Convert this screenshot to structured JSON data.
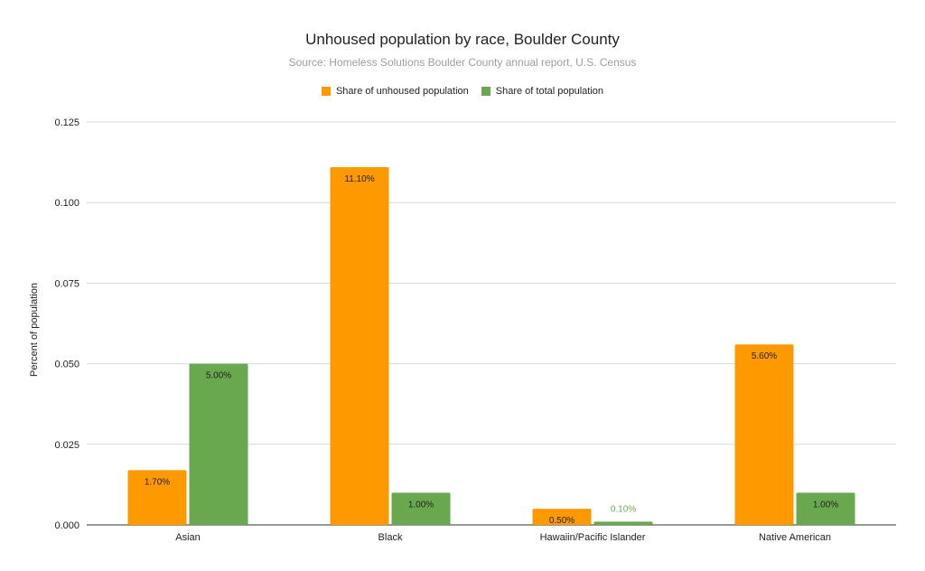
{
  "chart_data": {
    "type": "bar",
    "title": "Unhoused population by race, Boulder County",
    "subtitle": "Source: Homeless Solutions Boulder County annual report, U.S. Census",
    "xlabel": "",
    "ylabel": "Percent of population",
    "categories": [
      "Asian",
      "Black",
      "Hawaiin/Pacific Islander",
      "Native American"
    ],
    "series": [
      {
        "name": "Share of unhoused population",
        "color": "#ff9900",
        "values": [
          0.017,
          0.111,
          0.005,
          0.056
        ],
        "labels": [
          "1.70%",
          "11.10%",
          "0.50%",
          "5.60%"
        ]
      },
      {
        "name": "Share of total population",
        "color": "#6aa84f",
        "values": [
          0.05,
          0.01,
          0.001,
          0.01
        ],
        "labels": [
          "5.00%",
          "1.00%",
          "0.10%",
          "1.00%"
        ]
      }
    ],
    "ylim": [
      0,
      0.125
    ],
    "yticks": [
      "0.000",
      "0.025",
      "0.050",
      "0.075",
      "0.100",
      "0.125"
    ],
    "ytick_values": [
      0,
      0.025,
      0.05,
      0.075,
      0.1,
      0.125
    ],
    "grid": true,
    "legend_position": "top-center"
  }
}
